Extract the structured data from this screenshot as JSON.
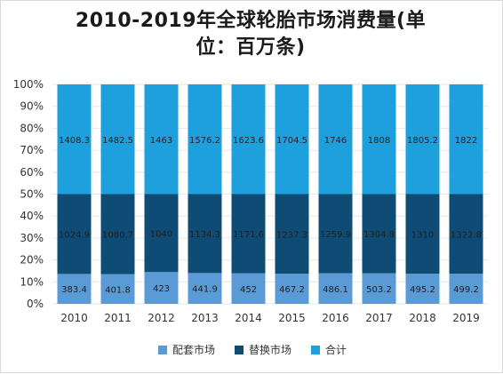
{
  "chart_data": {
    "type": "bar",
    "stacked": "percent",
    "title": "2010-2019年全球轮胎市场消费量(单位：百万条)",
    "xlabel": "",
    "ylabel": "",
    "ylim": [
      0,
      100
    ],
    "y_ticks": [
      "0%",
      "10%",
      "20%",
      "30%",
      "40%",
      "50%",
      "60%",
      "70%",
      "80%",
      "90%",
      "100%"
    ],
    "categories": [
      "2010",
      "2011",
      "2012",
      "2013",
      "2014",
      "2015",
      "2016",
      "2017",
      "2018",
      "2019"
    ],
    "series": [
      {
        "name": "配套市场",
        "color": "#5b9bd5",
        "values": [
          383.4,
          401.8,
          423,
          441.9,
          452,
          467.2,
          486.1,
          503.2,
          495.2,
          499.2
        ]
      },
      {
        "name": "替换市场",
        "color": "#0f4c75",
        "values": [
          1024.9,
          1080.7,
          1040,
          1134.3,
          1171.6,
          1237.3,
          1259.9,
          1304.8,
          1310,
          1322.8
        ]
      },
      {
        "name": "合计",
        "color": "#1ea0dc",
        "values": [
          1408.3,
          1482.5,
          1463,
          1576.2,
          1623.6,
          1704.5,
          1746,
          1808,
          1805.2,
          1822
        ]
      }
    ],
    "grid": true,
    "legend": "bottom"
  }
}
